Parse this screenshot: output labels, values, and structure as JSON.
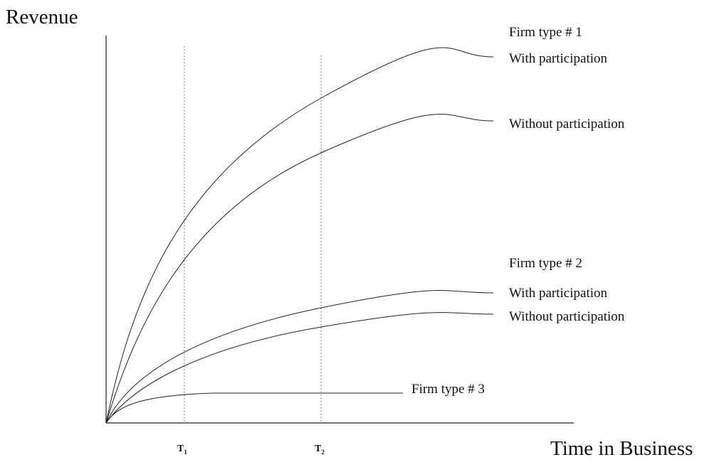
{
  "diagram": {
    "y_axis_label": "Revenue",
    "x_axis_label": "Time in Business",
    "time_markers": [
      {
        "main": "T",
        "sub": "1"
      },
      {
        "main": "T",
        "sub": "2"
      }
    ],
    "groups": [
      {
        "name": "Firm type # 1",
        "curves": [
          "With participation",
          "Without participation"
        ]
      },
      {
        "name": "Firm type # 2",
        "curves": [
          "With participation",
          "Without participation"
        ]
      },
      {
        "name": "Firm type # 3",
        "curves": []
      }
    ]
  }
}
